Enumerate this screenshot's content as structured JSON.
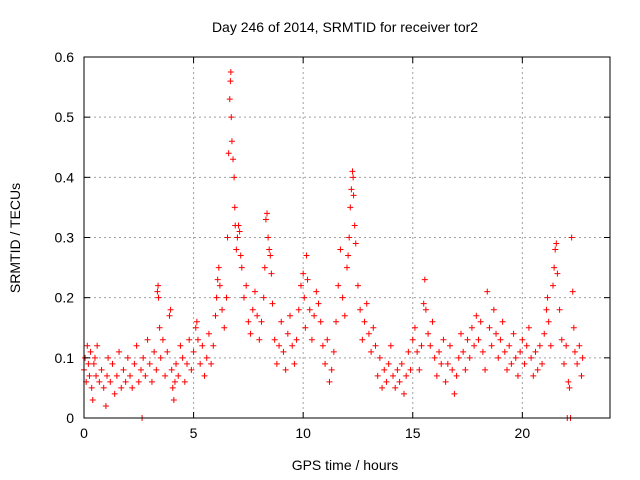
{
  "chart_data": {
    "type": "scatter",
    "title": "Day 246 of 2014, SRMTID for receiver tor2",
    "xlabel": "GPS time / hours",
    "ylabel": "SRMTID / TECUs",
    "xlim": [
      0,
      24
    ],
    "ylim": [
      0,
      0.6
    ],
    "xticks": [
      0,
      5,
      10,
      15,
      20
    ],
    "yticks": [
      0,
      0.1,
      0.2,
      0.3,
      0.4,
      0.5,
      0.6
    ],
    "xtick_labels": [
      "0",
      "5",
      "10",
      "15",
      "20"
    ],
    "ytick_labels": [
      "0",
      "0.1",
      "0.2",
      "0.3",
      "0.4",
      "0.5",
      "0.6"
    ],
    "grid": true,
    "marker": "+",
    "color": "#ff0000",
    "series": [
      {
        "name": "SRMTID",
        "points": [
          [
            0.0,
            0.08
          ],
          [
            0.05,
            0.1
          ],
          [
            0.1,
            0.06
          ],
          [
            0.15,
            0.12
          ],
          [
            0.2,
            0.09
          ],
          [
            0.25,
            0.07
          ],
          [
            0.3,
            0.11
          ],
          [
            0.35,
            0.05
          ],
          [
            0.4,
            0.03
          ],
          [
            0.45,
            0.09
          ],
          [
            0.5,
            0.1
          ],
          [
            0.55,
            0.07
          ],
          [
            0.6,
            0.12
          ],
          [
            0.7,
            0.06
          ],
          [
            0.8,
            0.08
          ],
          [
            0.9,
            0.05
          ],
          [
            1.0,
            0.02
          ],
          [
            1.05,
            0.07
          ],
          [
            1.1,
            0.1
          ],
          [
            1.2,
            0.06
          ],
          [
            1.3,
            0.09
          ],
          [
            1.4,
            0.04
          ],
          [
            1.5,
            0.07
          ],
          [
            1.6,
            0.11
          ],
          [
            1.7,
            0.05
          ],
          [
            1.8,
            0.08
          ],
          [
            1.9,
            0.06
          ],
          [
            2.0,
            0.1
          ],
          [
            2.1,
            0.07
          ],
          [
            2.2,
            0.05
          ],
          [
            2.3,
            0.09
          ],
          [
            2.4,
            0.12
          ],
          [
            2.5,
            0.06
          ],
          [
            2.6,
            0.08
          ],
          [
            2.65,
            0.0
          ],
          [
            2.7,
            0.1
          ],
          [
            2.8,
            0.07
          ],
          [
            2.9,
            0.13
          ],
          [
            3.0,
            0.09
          ],
          [
            3.1,
            0.06
          ],
          [
            3.2,
            0.11
          ],
          [
            3.3,
            0.08
          ],
          [
            3.35,
            0.21
          ],
          [
            3.38,
            0.22
          ],
          [
            3.4,
            0.2
          ],
          [
            3.45,
            0.15
          ],
          [
            3.5,
            0.1
          ],
          [
            3.6,
            0.13
          ],
          [
            3.7,
            0.07
          ],
          [
            3.8,
            0.11
          ],
          [
            3.9,
            0.17
          ],
          [
            3.95,
            0.18
          ],
          [
            4.0,
            0.08
          ],
          [
            4.05,
            0.05
          ],
          [
            4.1,
            0.03
          ],
          [
            4.15,
            0.06
          ],
          [
            4.2,
            0.09
          ],
          [
            4.3,
            0.07
          ],
          [
            4.4,
            0.12
          ],
          [
            4.5,
            0.1
          ],
          [
            4.6,
            0.06
          ],
          [
            4.7,
            0.09
          ],
          [
            4.8,
            0.13
          ],
          [
            4.9,
            0.08
          ],
          [
            5.0,
            0.11
          ],
          [
            5.1,
            0.15
          ],
          [
            5.15,
            0.16
          ],
          [
            5.2,
            0.13
          ],
          [
            5.3,
            0.09
          ],
          [
            5.4,
            0.12
          ],
          [
            5.5,
            0.07
          ],
          [
            5.6,
            0.1
          ],
          [
            5.7,
            0.14
          ],
          [
            5.8,
            0.09
          ],
          [
            5.9,
            0.12
          ],
          [
            6.0,
            0.17
          ],
          [
            6.05,
            0.2
          ],
          [
            6.1,
            0.23
          ],
          [
            6.15,
            0.25
          ],
          [
            6.2,
            0.22
          ],
          [
            6.3,
            0.18
          ],
          [
            6.4,
            0.15
          ],
          [
            6.5,
            0.2
          ],
          [
            6.55,
            0.3
          ],
          [
            6.6,
            0.44
          ],
          [
            6.65,
            0.53
          ],
          [
            6.68,
            0.56
          ],
          [
            6.7,
            0.575
          ],
          [
            6.72,
            0.5
          ],
          [
            6.75,
            0.46
          ],
          [
            6.8,
            0.43
          ],
          [
            6.85,
            0.4
          ],
          [
            6.88,
            0.35
          ],
          [
            6.9,
            0.32
          ],
          [
            6.95,
            0.28
          ],
          [
            7.0,
            0.3
          ],
          [
            7.05,
            0.32
          ],
          [
            7.1,
            0.31
          ],
          [
            7.15,
            0.27
          ],
          [
            7.2,
            0.25
          ],
          [
            7.3,
            0.2
          ],
          [
            7.4,
            0.22
          ],
          [
            7.5,
            0.16
          ],
          [
            7.6,
            0.14
          ],
          [
            7.7,
            0.18
          ],
          [
            7.8,
            0.21
          ],
          [
            7.9,
            0.17
          ],
          [
            8.0,
            0.13
          ],
          [
            8.1,
            0.16
          ],
          [
            8.2,
            0.2
          ],
          [
            8.25,
            0.25
          ],
          [
            8.3,
            0.33
          ],
          [
            8.35,
            0.34
          ],
          [
            8.4,
            0.3
          ],
          [
            8.45,
            0.28
          ],
          [
            8.5,
            0.27
          ],
          [
            8.55,
            0.24
          ],
          [
            8.6,
            0.19
          ],
          [
            8.7,
            0.13
          ],
          [
            8.8,
            0.09
          ],
          [
            8.9,
            0.12
          ],
          [
            9.0,
            0.16
          ],
          [
            9.1,
            0.11
          ],
          [
            9.2,
            0.08
          ],
          [
            9.3,
            0.14
          ],
          [
            9.4,
            0.17
          ],
          [
            9.5,
            0.12
          ],
          [
            9.6,
            0.09
          ],
          [
            9.7,
            0.13
          ],
          [
            9.8,
            0.18
          ],
          [
            9.9,
            0.22
          ],
          [
            10.0,
            0.24
          ],
          [
            10.05,
            0.2
          ],
          [
            10.1,
            0.15
          ],
          [
            10.15,
            0.27
          ],
          [
            10.2,
            0.23
          ],
          [
            10.3,
            0.18
          ],
          [
            10.4,
            0.13
          ],
          [
            10.5,
            0.17
          ],
          [
            10.6,
            0.21
          ],
          [
            10.7,
            0.19
          ],
          [
            10.8,
            0.16
          ],
          [
            10.9,
            0.12
          ],
          [
            11.0,
            0.09
          ],
          [
            11.1,
            0.13
          ],
          [
            11.2,
            0.06
          ],
          [
            11.3,
            0.08
          ],
          [
            11.4,
            0.11
          ],
          [
            11.5,
            0.16
          ],
          [
            11.6,
            0.22
          ],
          [
            11.7,
            0.28
          ],
          [
            11.8,
            0.2
          ],
          [
            11.9,
            0.17
          ],
          [
            12.0,
            0.25
          ],
          [
            12.05,
            0.27
          ],
          [
            12.1,
            0.3
          ],
          [
            12.15,
            0.35
          ],
          [
            12.2,
            0.38
          ],
          [
            12.25,
            0.41
          ],
          [
            12.28,
            0.4
          ],
          [
            12.3,
            0.37
          ],
          [
            12.35,
            0.32
          ],
          [
            12.4,
            0.29
          ],
          [
            12.5,
            0.22
          ],
          [
            12.6,
            0.18
          ],
          [
            12.7,
            0.13
          ],
          [
            12.8,
            0.16
          ],
          [
            12.9,
            0.19
          ],
          [
            13.0,
            0.14
          ],
          [
            13.1,
            0.11
          ],
          [
            13.2,
            0.15
          ],
          [
            13.3,
            0.12
          ],
          [
            13.4,
            0.07
          ],
          [
            13.5,
            0.1
          ],
          [
            13.6,
            0.05
          ],
          [
            13.7,
            0.08
          ],
          [
            13.8,
            0.06
          ],
          [
            13.9,
            0.09
          ],
          [
            14.0,
            0.12
          ],
          [
            14.1,
            0.07
          ],
          [
            14.2,
            0.05
          ],
          [
            14.3,
            0.08
          ],
          [
            14.4,
            0.06
          ],
          [
            14.5,
            0.09
          ],
          [
            14.6,
            0.04
          ],
          [
            14.7,
            0.07
          ],
          [
            14.8,
            0.11
          ],
          [
            14.9,
            0.08
          ],
          [
            15.0,
            0.13
          ],
          [
            15.1,
            0.15
          ],
          [
            15.2,
            0.11
          ],
          [
            15.3,
            0.08
          ],
          [
            15.4,
            0.12
          ],
          [
            15.5,
            0.19
          ],
          [
            15.55,
            0.23
          ],
          [
            15.6,
            0.18
          ],
          [
            15.7,
            0.14
          ],
          [
            15.8,
            0.12
          ],
          [
            15.9,
            0.16
          ],
          [
            16.0,
            0.1
          ],
          [
            16.1,
            0.07
          ],
          [
            16.2,
            0.11
          ],
          [
            16.3,
            0.09
          ],
          [
            16.4,
            0.13
          ],
          [
            16.5,
            0.06
          ],
          [
            16.6,
            0.09
          ],
          [
            16.7,
            0.12
          ],
          [
            16.8,
            0.08
          ],
          [
            16.9,
            0.04
          ],
          [
            17.0,
            0.07
          ],
          [
            17.1,
            0.1
          ],
          [
            17.2,
            0.14
          ],
          [
            17.3,
            0.11
          ],
          [
            17.4,
            0.08
          ],
          [
            17.5,
            0.13
          ],
          [
            17.6,
            0.1
          ],
          [
            17.7,
            0.15
          ],
          [
            17.8,
            0.12
          ],
          [
            17.9,
            0.17
          ],
          [
            18.0,
            0.13
          ],
          [
            18.1,
            0.16
          ],
          [
            18.2,
            0.11
          ],
          [
            18.3,
            0.08
          ],
          [
            18.4,
            0.21
          ],
          [
            18.5,
            0.15
          ],
          [
            18.6,
            0.12
          ],
          [
            18.7,
            0.18
          ],
          [
            18.8,
            0.14
          ],
          [
            18.9,
            0.1
          ],
          [
            19.0,
            0.13
          ],
          [
            19.1,
            0.16
          ],
          [
            19.2,
            0.11
          ],
          [
            19.3,
            0.08
          ],
          [
            19.4,
            0.12
          ],
          [
            19.5,
            0.09
          ],
          [
            19.6,
            0.14
          ],
          [
            19.7,
            0.1
          ],
          [
            19.8,
            0.07
          ],
          [
            19.9,
            0.11
          ],
          [
            20.0,
            0.13
          ],
          [
            20.1,
            0.09
          ],
          [
            20.2,
            0.12
          ],
          [
            20.3,
            0.15
          ],
          [
            20.4,
            0.1
          ],
          [
            20.5,
            0.07
          ],
          [
            20.6,
            0.11
          ],
          [
            20.7,
            0.08
          ],
          [
            20.8,
            0.12
          ],
          [
            20.9,
            0.09
          ],
          [
            21.0,
            0.14
          ],
          [
            21.1,
            0.18
          ],
          [
            21.15,
            0.2
          ],
          [
            21.2,
            0.16
          ],
          [
            21.3,
            0.12
          ],
          [
            21.4,
            0.22
          ],
          [
            21.45,
            0.25
          ],
          [
            21.5,
            0.28
          ],
          [
            21.55,
            0.29
          ],
          [
            21.6,
            0.24
          ],
          [
            21.7,
            0.18
          ],
          [
            21.8,
            0.13
          ],
          [
            21.9,
            0.09
          ],
          [
            22.0,
            0.12
          ],
          [
            22.05,
            0.0
          ],
          [
            22.1,
            0.06
          ],
          [
            22.15,
            0.05
          ],
          [
            22.2,
            0.0
          ],
          [
            22.25,
            0.3
          ],
          [
            22.3,
            0.21
          ],
          [
            22.35,
            0.15
          ],
          [
            22.4,
            0.11
          ],
          [
            22.5,
            0.09
          ],
          [
            22.6,
            0.12
          ],
          [
            22.7,
            0.07
          ],
          [
            22.75,
            0.1
          ]
        ]
      }
    ]
  }
}
